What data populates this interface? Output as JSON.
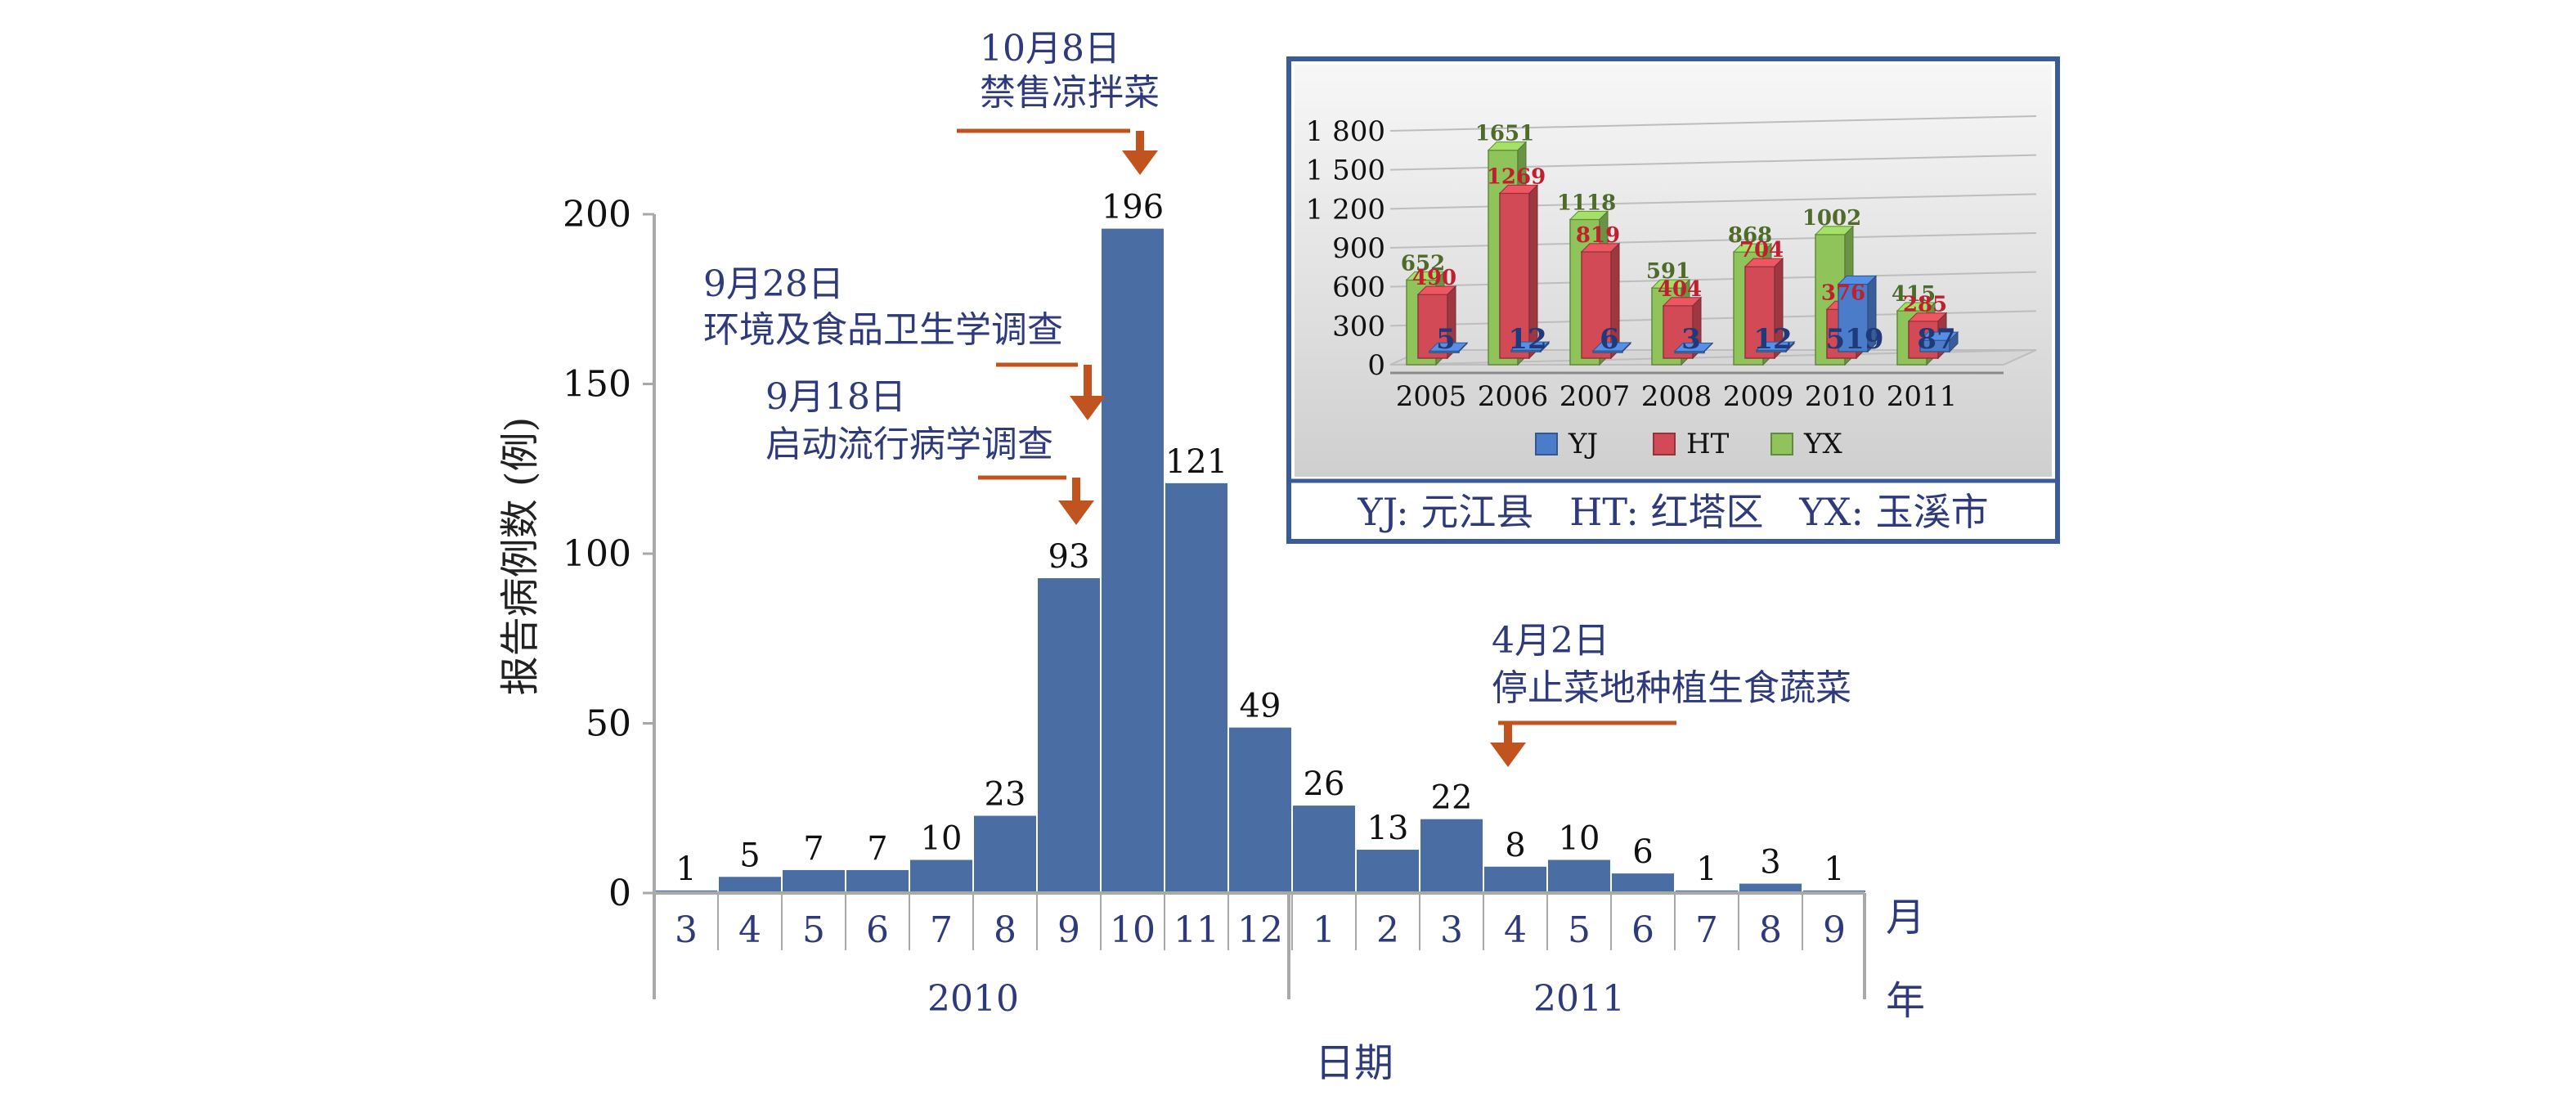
{
  "chart_data": [
    {
      "type": "bar",
      "xlabel": "日期",
      "ylabel": "报告病例数 (例)",
      "unit_month": "月",
      "unit_year": "年",
      "ylim": [
        0,
        200
      ],
      "yticks": [
        "0",
        "50",
        "100",
        "150",
        "200"
      ],
      "categories": [
        "3",
        "4",
        "5",
        "6",
        "7",
        "8",
        "9",
        "10",
        "11",
        "12",
        "1",
        "2",
        "3",
        "4",
        "5",
        "6",
        "7",
        "8",
        "9"
      ],
      "values": [
        1,
        5,
        7,
        7,
        10,
        23,
        93,
        196,
        121,
        49,
        26,
        13,
        22,
        8,
        10,
        6,
        1,
        3,
        1
      ],
      "years": [
        {
          "label": "2010",
          "from": 0,
          "to": 9
        },
        {
          "label": "2011",
          "from": 10,
          "to": 18
        }
      ],
      "bar_color": "#4a6ea4",
      "annotation_color": "#2f3a7a",
      "arrow_color": "#c0531e",
      "annotations": [
        {
          "date": "10月8日",
          "text": "禁售凉拌菜",
          "at_index": 7
        },
        {
          "date": "9月28日",
          "text": "环境及食品卫生学调查",
          "at_index": 6
        },
        {
          "date": "9月18日",
          "text": "启动流行病学调查",
          "at_index": 6
        },
        {
          "date": "4月2日",
          "text": "停止菜地种植生食蔬菜",
          "at_index": 13
        }
      ]
    },
    {
      "type": "bar",
      "style": "3d-clustered",
      "categories": [
        "2005",
        "2006",
        "2007",
        "2008",
        "2009",
        "2010",
        "2011"
      ],
      "ylim": [
        0,
        1800
      ],
      "yticks": [
        "0",
        "300",
        "600",
        "900",
        "1 200",
        "1 500",
        "1 800"
      ],
      "series": [
        {
          "name": "YJ",
          "color": "#4a7cc9",
          "label_color": "#1f3a7a",
          "values": [
            5,
            12,
            6,
            3,
            12,
            519,
            87
          ]
        },
        {
          "name": "HT",
          "color": "#d14a55",
          "label_color": "#c0202e",
          "values": [
            490,
            1269,
            819,
            404,
            704,
            376,
            285
          ]
        },
        {
          "name": "YX",
          "color": "#8ec45a",
          "label_color": "#4f6b2a",
          "values": [
            652,
            1651,
            1118,
            591,
            868,
            1002,
            415
          ]
        }
      ],
      "legend_position": "bottom",
      "caption": "YJ: 元江县   HT: 红塔区   YX: 玉溪市"
    }
  ]
}
